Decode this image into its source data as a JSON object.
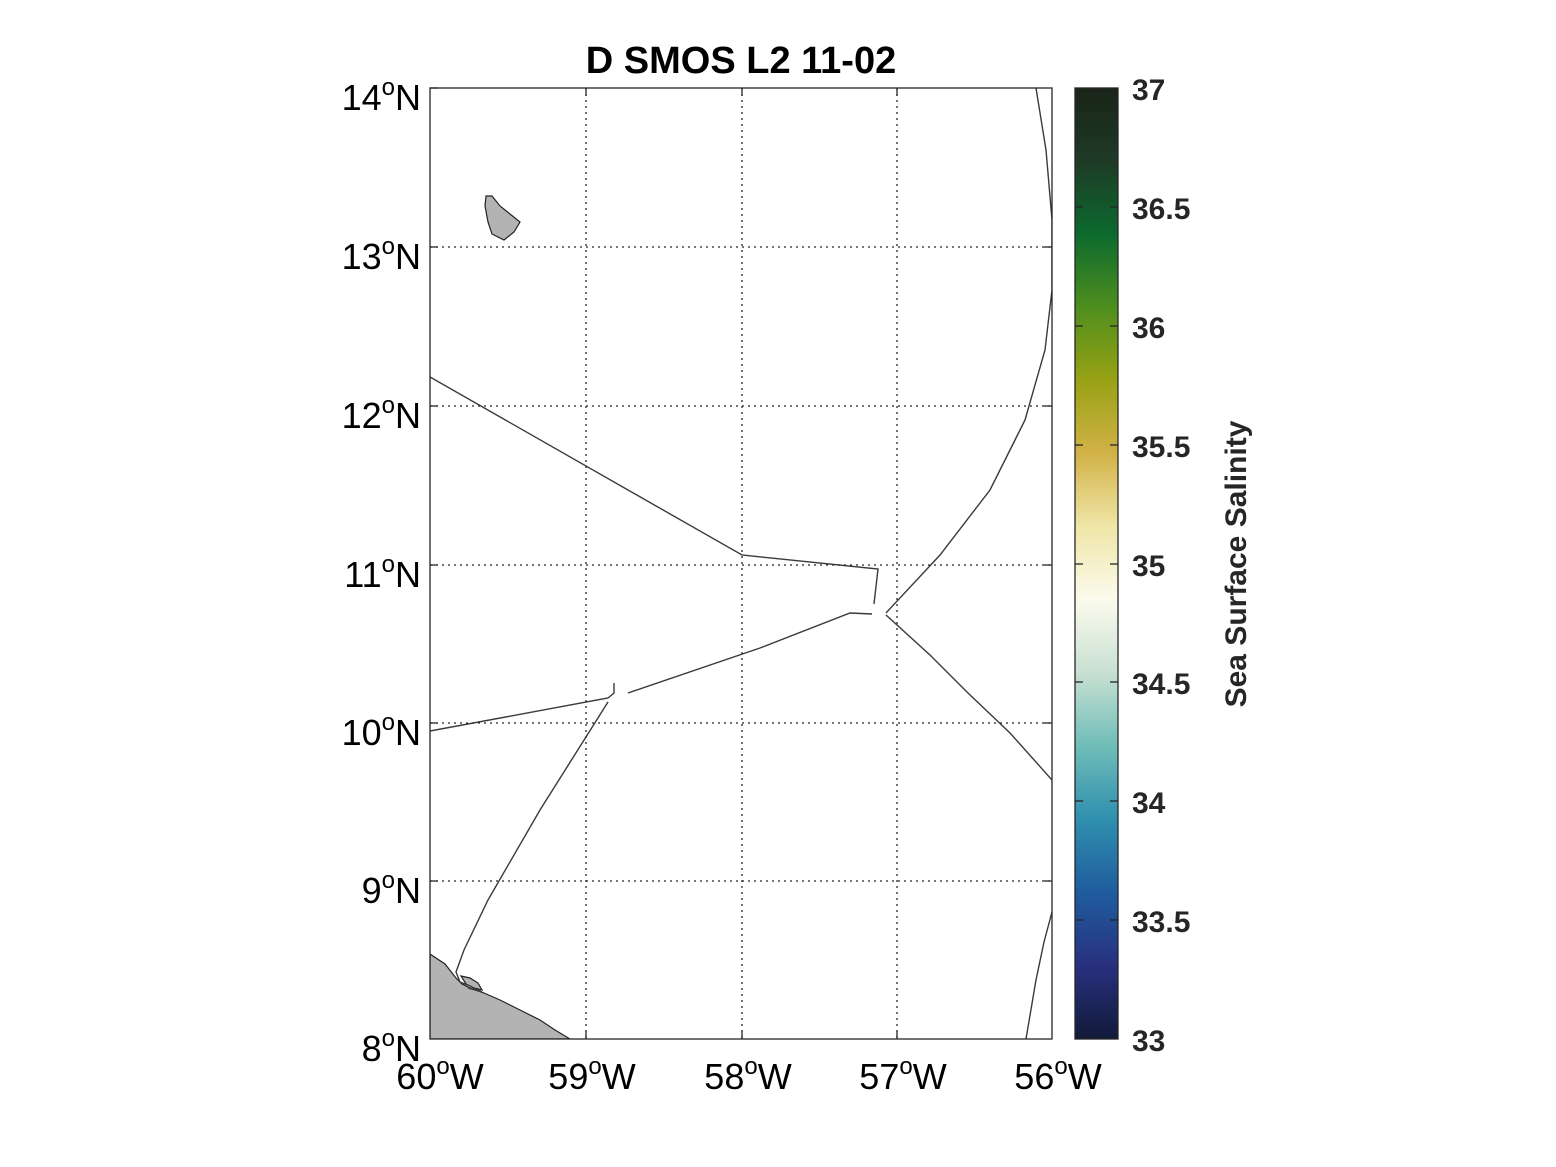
{
  "map": {
    "title": "D SMOS L2 11-02",
    "lat_ticks": [
      {
        "deg": "14",
        "hemi": "N"
      },
      {
        "deg": "13",
        "hemi": "N"
      },
      {
        "deg": "12",
        "hemi": "N"
      },
      {
        "deg": "11",
        "hemi": "N"
      },
      {
        "deg": "10",
        "hemi": "N"
      },
      {
        "deg": "9",
        "hemi": "N"
      },
      {
        "deg": "8",
        "hemi": "N"
      }
    ],
    "lon_ticks": [
      {
        "deg": "60",
        "hemi": "W"
      },
      {
        "deg": "59",
        "hemi": "W"
      },
      {
        "deg": "58",
        "hemi": "W"
      },
      {
        "deg": "57",
        "hemi": "W"
      },
      {
        "deg": "56",
        "hemi": "W"
      }
    ],
    "degree_symbol": "o",
    "lat_range": [
      8,
      14
    ],
    "lon_range": [
      -60,
      -56
    ],
    "land_color": "#b3b3b3"
  },
  "colorbar": {
    "label": "Sea Surface Salinity",
    "ticks": [
      "37",
      "36.5",
      "36",
      "35.5",
      "35",
      "34.5",
      "34",
      "33.5",
      "33"
    ],
    "range": [
      33,
      37
    ],
    "colors": [
      "#121a3a",
      "#28307f",
      "#1f5c9e",
      "#2f8fae",
      "#6fbdb8",
      "#c8e0d2",
      "#fbfbed",
      "#efe6a8",
      "#d2b248",
      "#98a214",
      "#4f8e1e",
      "#0c6a2e",
      "#1e3a26",
      "#1a2418"
    ]
  }
}
